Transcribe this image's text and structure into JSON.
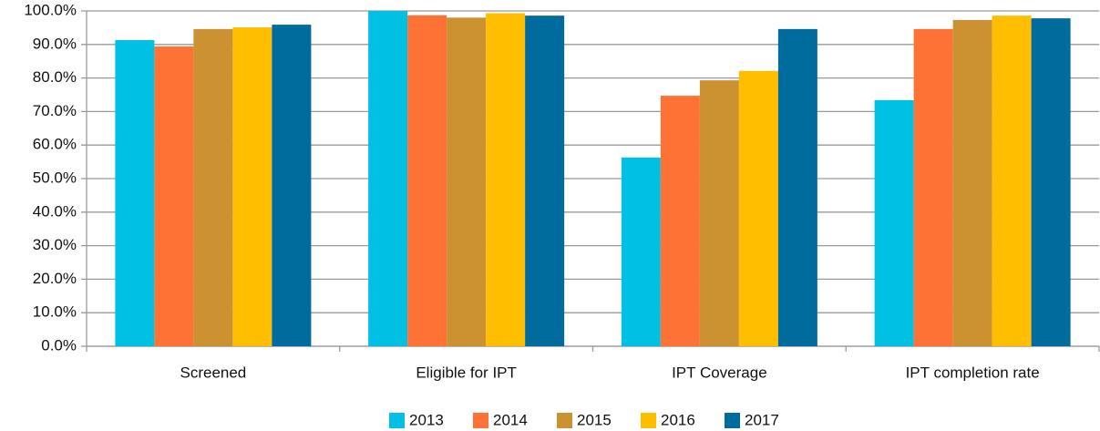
{
  "chart_data": {
    "type": "bar",
    "categories": [
      "Screened",
      "Eligible for IPT",
      "IPT Coverage",
      "IPT completion rate"
    ],
    "series": [
      {
        "name": "2013",
        "color": "#00c0e4",
        "values": [
          91.3,
          100,
          56.3,
          73.4
        ]
      },
      {
        "name": "2014",
        "color": "#ff7236",
        "values": [
          89.4,
          98.7,
          74.7,
          94.6
        ]
      },
      {
        "name": "2015",
        "color": "#cc9130",
        "values": [
          94.6,
          98.0,
          79.3,
          97.3
        ]
      },
      {
        "name": "2016",
        "color": "#ffbf00",
        "values": [
          95.1,
          99.3,
          82.1,
          98.6
        ]
      },
      {
        "name": "2017",
        "color": "#006c9d",
        "values": [
          95.9,
          98.6,
          94.6,
          97.8
        ]
      }
    ],
    "ylim": [
      0,
      100
    ],
    "yticks": [
      {
        "value": 0,
        "label": "0.0%"
      },
      {
        "value": 10,
        "label": "10.0%"
      },
      {
        "value": 20,
        "label": "20.0%"
      },
      {
        "value": 30,
        "label": "30.0%"
      },
      {
        "value": 40,
        "label": "40.0%"
      },
      {
        "value": 50,
        "label": "50.0%"
      },
      {
        "value": 60,
        "label": "60.0%"
      },
      {
        "value": 70,
        "label": "70.0%"
      },
      {
        "value": 80,
        "label": "80.0%"
      },
      {
        "value": 90,
        "label": "90.0%"
      },
      {
        "value": 100,
        "label": "100.0%"
      }
    ],
    "grid": true,
    "legend": "bottom"
  }
}
